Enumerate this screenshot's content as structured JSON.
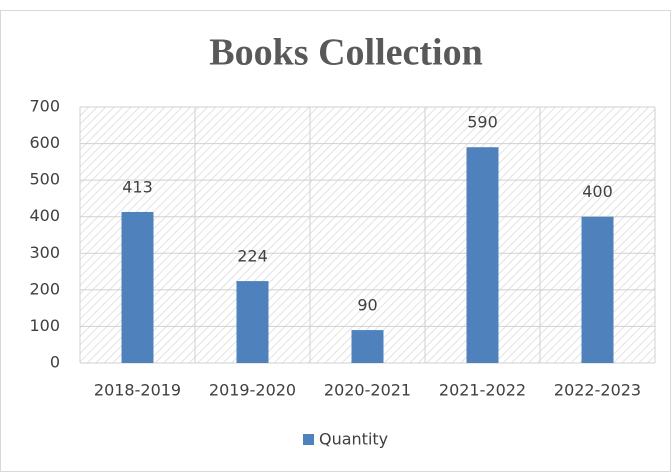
{
  "chart_data": {
    "type": "bar",
    "title": "Books Collection",
    "categories": [
      "2018-2019",
      "2019-2020",
      "2020-2021",
      "2021-2022",
      "2022-2023"
    ],
    "series": [
      {
        "name": "Quantity",
        "color": "#4f81bd",
        "values": [
          413,
          224,
          90,
          590,
          400
        ]
      }
    ],
    "ylim": [
      0,
      700
    ],
    "yticks": [
      0,
      100,
      200,
      300,
      400,
      500,
      600,
      700
    ],
    "grid": true,
    "legend": "bottom"
  }
}
